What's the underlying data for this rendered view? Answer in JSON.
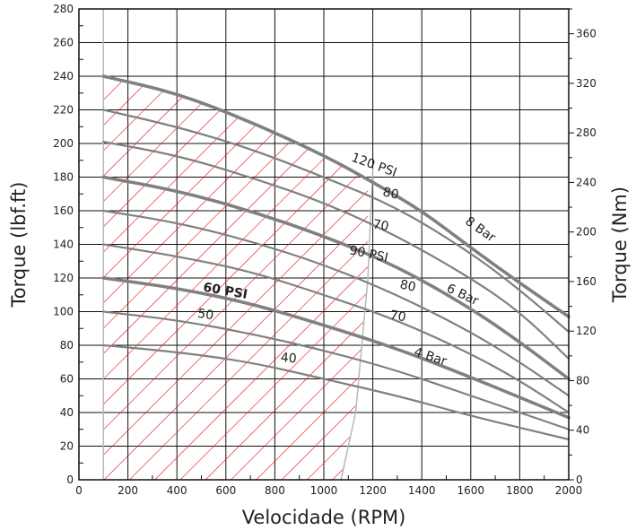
{
  "chart_data": {
    "type": "line",
    "xlabel": "Velocidade (RPM)",
    "ylabel_left": "Torque (lbf.ft)",
    "ylabel_right": "Torque (Nm)",
    "xlim": [
      0,
      2000
    ],
    "ylim_left": [
      0,
      280
    ],
    "ylim_right_nm": [
      0,
      380
    ],
    "x_ticks": [
      "0",
      "200",
      "400",
      "600",
      "800",
      "1000",
      "1200",
      "1400",
      "1600",
      "1800",
      "2000"
    ],
    "y_ticks_left": [
      "0",
      "20",
      "40",
      "60",
      "80",
      "100",
      "120",
      "140",
      "160",
      "180",
      "200",
      "220",
      "240",
      "260",
      "280"
    ],
    "y_ticks_right": [
      "0",
      "40",
      "80",
      "120",
      "160",
      "200",
      "240",
      "280",
      "320",
      "360"
    ],
    "grid": true,
    "hatch_color": "#e01010",
    "curve_color": "#808080",
    "series": [
      {
        "name": "8 Bar",
        "emphasis": true,
        "x": [
          100,
          400,
          700,
          1000,
          1200,
          1400,
          1600,
          1800,
          2000
        ],
        "y": [
          240,
          230,
          213,
          193,
          177,
          160,
          138,
          117,
          97
        ]
      },
      {
        "x": [
          100,
          400,
          700,
          1000,
          1300,
          1600,
          1800,
          2000
        ],
        "y": [
          220,
          210,
          197,
          180,
          162,
          135,
          113,
          88
        ]
      },
      {
        "x": [
          100,
          400,
          700,
          1000,
          1300,
          1600,
          1800,
          2000
        ],
        "y": [
          201,
          193,
          180,
          165,
          145,
          120,
          100,
          72
        ]
      },
      {
        "name": "6 Bar",
        "emphasis": true,
        "x": [
          100,
          400,
          700,
          1000,
          1300,
          1600,
          1800,
          2000
        ],
        "y": [
          180,
          172,
          160,
          145,
          127,
          102,
          82,
          60
        ]
      },
      {
        "x": [
          100,
          400,
          700,
          1000,
          1300,
          1600,
          1800,
          2000
        ],
        "y": [
          160,
          153,
          142,
          128,
          110,
          88,
          70,
          50
        ]
      },
      {
        "x": [
          100,
          400,
          700,
          1000,
          1300,
          1600,
          1800,
          2000
        ],
        "y": [
          140,
          133,
          124,
          110,
          95,
          75,
          59,
          40
        ]
      },
      {
        "name": "4 Bar",
        "emphasis": true,
        "x": [
          100,
          400,
          700,
          1000,
          1300,
          1600,
          1800,
          2000
        ],
        "y": [
          120,
          114,
          105,
          92,
          78,
          61,
          49,
          37
        ]
      },
      {
        "x": [
          100,
          400,
          700,
          1000,
          1300,
          1600,
          1800,
          2000
        ],
        "y": [
          100,
          95,
          87,
          77,
          65,
          50,
          40,
          30
        ]
      },
      {
        "x": [
          100,
          400,
          700,
          1000,
          1300,
          1600,
          1800,
          2000
        ],
        "y": [
          80,
          76,
          70,
          60,
          50,
          38,
          31,
          24
        ]
      }
    ],
    "annotations": [
      {
        "text": "120 PSI",
        "x": 1200,
        "y": 185,
        "angle": 20
      },
      {
        "text": "80",
        "x": 1270,
        "y": 168,
        "angle": 12
      },
      {
        "text": "70",
        "x": 1230,
        "y": 149,
        "angle": 10
      },
      {
        "text": "90 PSI",
        "x": 1180,
        "y": 132,
        "angle": 12
      },
      {
        "text": "80",
        "x": 1340,
        "y": 113,
        "angle": 12
      },
      {
        "text": "70",
        "x": 1300,
        "y": 95,
        "angle": 10
      },
      {
        "text": "60 PSI",
        "x": 595,
        "y": 110,
        "angle": 10,
        "bold": true
      },
      {
        "text": "50",
        "x": 515,
        "y": 96,
        "angle": 8
      },
      {
        "text": "40",
        "x": 855,
        "y": 70,
        "angle": 5
      },
      {
        "text": "8 Bar",
        "x": 1630,
        "y": 147,
        "angle": 35
      },
      {
        "text": "6 Bar",
        "x": 1560,
        "y": 108,
        "angle": 25
      },
      {
        "text": "4 Bar",
        "x": 1430,
        "y": 71,
        "angle": 18
      }
    ]
  }
}
